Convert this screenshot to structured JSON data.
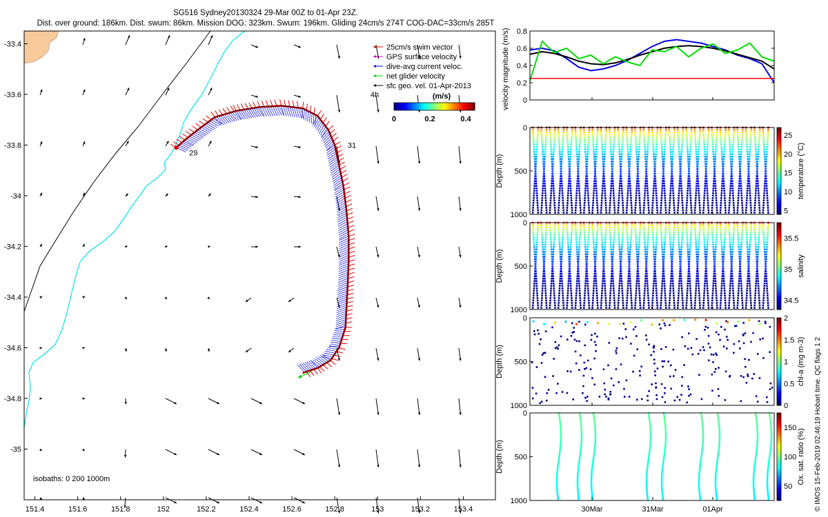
{
  "header": {
    "title": "SG516 Sydney20130324 29-Mar 00Z to 01-Apr 23Z.",
    "subtitle": "Dist. over ground: 186km. Dist. swum: 86km. Mission DOG: 323km. Swum: 196km. Gliding 24cm/s 274T COG-DAC=33cm/s 285T"
  },
  "credit": "© IMOS 15-Feb-2019 02:46:19 Hobart time. QC flags 1  2",
  "colors": {
    "coast": "#00e5ee",
    "land": "#f7c99b",
    "swim": "#e00000",
    "dive": "#0000dd",
    "net": "#00cc00",
    "geo": "#000000",
    "gps": "#cc00cc"
  },
  "chart_data": [
    {
      "type": "map",
      "xlim": [
        151.35,
        153.55
      ],
      "ylim": [
        -35.2,
        -33.35
      ],
      "x_ticks": [
        "151.4",
        "151.6",
        "151.8",
        "152",
        "152.2",
        "152.4",
        "152.6",
        "152.8",
        "153",
        "153.2",
        "153.4"
      ],
      "y_ticks": [
        "-33.4",
        "-33.6",
        "-33.8",
        "-34",
        "-34.2",
        "-34.4",
        "-34.6",
        "-34.8",
        "-35"
      ],
      "legend": [
        {
          "label": "25cm/s swim vector",
          "color": "#e00000"
        },
        {
          "label": "GPS surface velocity",
          "color": "#cc00cc"
        },
        {
          "label": "dive-avg current veloc.",
          "color": "#0000dd"
        },
        {
          "label": "net glider velocity",
          "color": "#00cc00"
        },
        {
          "label": "sfc geo. vel. 01-Apr-2013",
          "color": "#000000"
        }
      ],
      "legend_extra": "4h",
      "colorbar": {
        "label": "(m/s)",
        "ticks": [
          "0",
          "0.2",
          "0.4"
        ],
        "range": [
          0,
          0.45
        ]
      },
      "track_labels": [
        {
          "text": "29",
          "lon": 152.14,
          "lat": -33.83
        },
        {
          "text": "31",
          "lon": 152.88,
          "lat": -33.8
        }
      ],
      "isobaths_text": "isobaths: 0   200   1000m",
      "track": [
        [
          152.06,
          -33.81
        ],
        [
          152.1,
          -33.78
        ],
        [
          152.16,
          -33.74
        ],
        [
          152.24,
          -33.69
        ],
        [
          152.34,
          -33.665
        ],
        [
          152.45,
          -33.65
        ],
        [
          152.55,
          -33.645
        ],
        [
          152.65,
          -33.655
        ],
        [
          152.72,
          -33.685
        ],
        [
          152.77,
          -33.74
        ],
        [
          152.8,
          -33.8
        ],
        [
          152.82,
          -33.88
        ],
        [
          152.84,
          -33.96
        ],
        [
          152.855,
          -34.06
        ],
        [
          152.865,
          -34.16
        ],
        [
          152.865,
          -34.26
        ],
        [
          152.86,
          -34.36
        ],
        [
          152.855,
          -34.44
        ],
        [
          152.85,
          -34.52
        ],
        [
          152.82,
          -34.6
        ],
        [
          152.78,
          -34.65
        ],
        [
          152.72,
          -34.68
        ],
        [
          152.65,
          -34.7
        ]
      ]
    },
    {
      "type": "line",
      "ylabel": "velocity magnitude (m/s)",
      "ylim": [
        0,
        0.8
      ],
      "y_ticks": [
        "0",
        "0.2",
        "0.4",
        "0.6",
        "0.8"
      ],
      "x": [
        0,
        0.05,
        0.1,
        0.15,
        0.2,
        0.25,
        0.3,
        0.35,
        0.4,
        0.45,
        0.5,
        0.55,
        0.6,
        0.65,
        0.7,
        0.75,
        0.8,
        0.85,
        0.9,
        0.95,
        1.0
      ],
      "series": [
        {
          "color": "#0000dd",
          "values": [
            0.58,
            0.6,
            0.57,
            0.48,
            0.38,
            0.34,
            0.36,
            0.4,
            0.46,
            0.54,
            0.62,
            0.68,
            0.7,
            0.68,
            0.66,
            0.62,
            0.58,
            0.52,
            0.48,
            0.42,
            0.2
          ]
        },
        {
          "color": "#000000",
          "values": [
            0.53,
            0.56,
            0.54,
            0.5,
            0.45,
            0.42,
            0.41,
            0.43,
            0.47,
            0.52,
            0.56,
            0.6,
            0.62,
            0.63,
            0.62,
            0.6,
            0.57,
            0.53,
            0.49,
            0.45,
            0.36
          ]
        },
        {
          "color": "#00dd00",
          "values": [
            0.22,
            0.68,
            0.55,
            0.6,
            0.48,
            0.52,
            0.42,
            0.5,
            0.44,
            0.4,
            0.58,
            0.56,
            0.62,
            0.5,
            0.6,
            0.65,
            0.54,
            0.58,
            0.66,
            0.5,
            0.45
          ]
        },
        {
          "color": "#ff0000",
          "values": [
            0.25,
            0.25,
            0.25,
            0.25,
            0.25,
            0.25,
            0.25,
            0.25,
            0.25,
            0.25,
            0.25,
            0.25,
            0.25,
            0.25,
            0.25,
            0.25,
            0.25,
            0.25,
            0.25,
            0.25,
            0.25
          ]
        }
      ]
    },
    {
      "type": "scatter",
      "ylabel": "Depth (m)",
      "colorbar_label": "temperature (°C)",
      "y_ticks": [
        "0",
        "500",
        "1000"
      ],
      "cb_ticks": [
        "5",
        "10",
        "15",
        "20",
        "25"
      ],
      "vmin": 4,
      "vmax": 27
    },
    {
      "type": "scatter",
      "ylabel": "Depth (m)",
      "colorbar_label": "salinity",
      "y_ticks": [
        "0",
        "500",
        "1000"
      ],
      "cb_ticks": [
        "34.5",
        "35",
        "35.5"
      ],
      "vmin": 34.35,
      "vmax": 35.75
    },
    {
      "type": "scatter",
      "ylabel": "Depth (m)",
      "colorbar_label": "chl-a (mg m-3)",
      "y_ticks": [
        "0",
        "500",
        "1000"
      ],
      "cb_ticks": [
        "0",
        "0.5",
        "1",
        "1.5",
        "2"
      ],
      "vmin": 0,
      "vmax": 2
    },
    {
      "type": "scatter",
      "ylabel": "Depth (m)",
      "colorbar_label": "Ox. sat. ratio (%)",
      "y_ticks": [
        "0",
        "500",
        "1000"
      ],
      "cb_ticks": [
        "50",
        "100",
        "150"
      ],
      "vmin": 25,
      "vmax": 175,
      "x_ticks": [
        "30Mar",
        "31Mar",
        "01Apr"
      ]
    }
  ]
}
